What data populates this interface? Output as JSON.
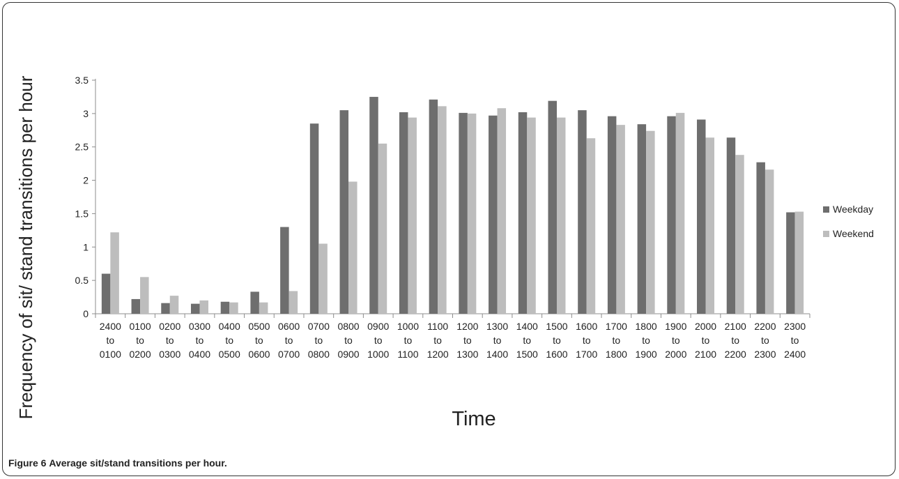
{
  "colors": {
    "weekday": "#6e6e6e",
    "weekend": "#bdbdbd",
    "axis": "#8c8c8c"
  },
  "caption": {
    "figure_label": "Figure 6",
    "text": "Average sit/stand transitions per hour."
  },
  "chart_data": {
    "type": "bar",
    "xlabel": "Time",
    "ylabel": "Frequency of sit/ stand transitions per hour",
    "ylim": [
      0,
      3.5
    ],
    "yticks": [
      "0",
      "0.5",
      "1",
      "1.5",
      "2",
      "2.5",
      "3",
      "3.5"
    ],
    "grid": false,
    "legend_position": "right",
    "categories": [
      "2400 to 0100",
      "0100 to 0200",
      "0200 to 0300",
      "0300 to 0400",
      "0400 to 0500",
      "0500 to 0600",
      "0600 to 0700",
      "0700 to 0800",
      "0800 to 0900",
      "0900 to 1000",
      "1000 to 1100",
      "1100 to 1200",
      "1200 to 1300",
      "1300 to 1400",
      "1400 to 1500",
      "1500 to 1600",
      "1600 to 1700",
      "1700 to 1800",
      "1800 to 1900",
      "1900 to 2000",
      "2000 to 2100",
      "2100 to 2200",
      "2200 to 2300",
      "2300 to 2400"
    ],
    "series": [
      {
        "name": "Weekday",
        "values": [
          0.6,
          0.22,
          0.16,
          0.15,
          0.18,
          0.33,
          1.3,
          2.85,
          3.05,
          3.25,
          3.02,
          3.21,
          3.01,
          2.97,
          3.02,
          3.19,
          3.05,
          2.96,
          2.84,
          2.96,
          2.91,
          2.64,
          2.27,
          1.52
        ]
      },
      {
        "name": "Weekend",
        "values": [
          1.22,
          0.55,
          0.27,
          0.2,
          0.17,
          0.17,
          0.34,
          1.05,
          1.98,
          2.55,
          2.94,
          3.11,
          3.0,
          3.08,
          2.94,
          2.94,
          2.63,
          2.83,
          2.74,
          3.01,
          2.64,
          2.38,
          2.16,
          1.53
        ]
      }
    ]
  }
}
